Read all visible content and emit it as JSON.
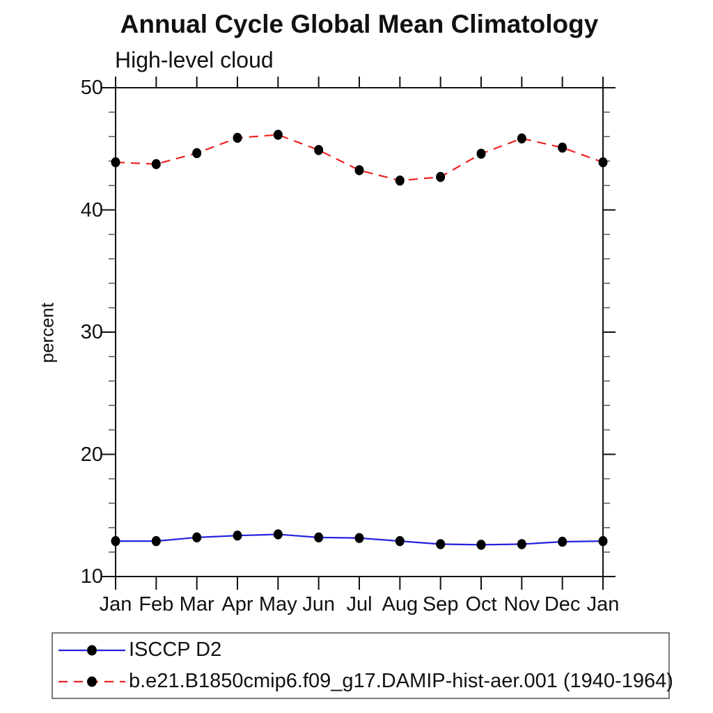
{
  "chart_data": {
    "type": "line",
    "title": "Annual Cycle Global Mean Climatology",
    "subtitle": "High-level cloud",
    "ylabel": "percent",
    "xlabel": "",
    "categories": [
      "Jan",
      "Feb",
      "Mar",
      "Apr",
      "May",
      "Jun",
      "Jul",
      "Aug",
      "Sep",
      "Oct",
      "Nov",
      "Dec",
      "Jan"
    ],
    "ylim": [
      10,
      50
    ],
    "ytick_major": [
      10,
      20,
      30,
      40,
      50
    ],
    "ytick_minor_step": 2,
    "grid": false,
    "legend_position": "bottom-left-box",
    "marker": {
      "shape": "filled-circle",
      "color": "#000000"
    },
    "axis_color": "#111111",
    "series": [
      {
        "name": "ISCCP D2",
        "color": "#2222dd",
        "style": "solid",
        "values": [
          12.9,
          12.9,
          13.2,
          13.35,
          13.45,
          13.2,
          13.15,
          12.9,
          12.65,
          12.6,
          12.65,
          12.85,
          12.9
        ]
      },
      {
        "name": "b.e21.B1850cmip6.f09_g17.DAMIP-hist-aer.001 (1940-1964)",
        "color": "#ee2222",
        "style": "dashed",
        "values": [
          43.9,
          43.75,
          44.65,
          45.9,
          46.15,
          44.9,
          43.25,
          42.4,
          42.7,
          44.6,
          45.85,
          45.1,
          43.9
        ]
      }
    ]
  }
}
